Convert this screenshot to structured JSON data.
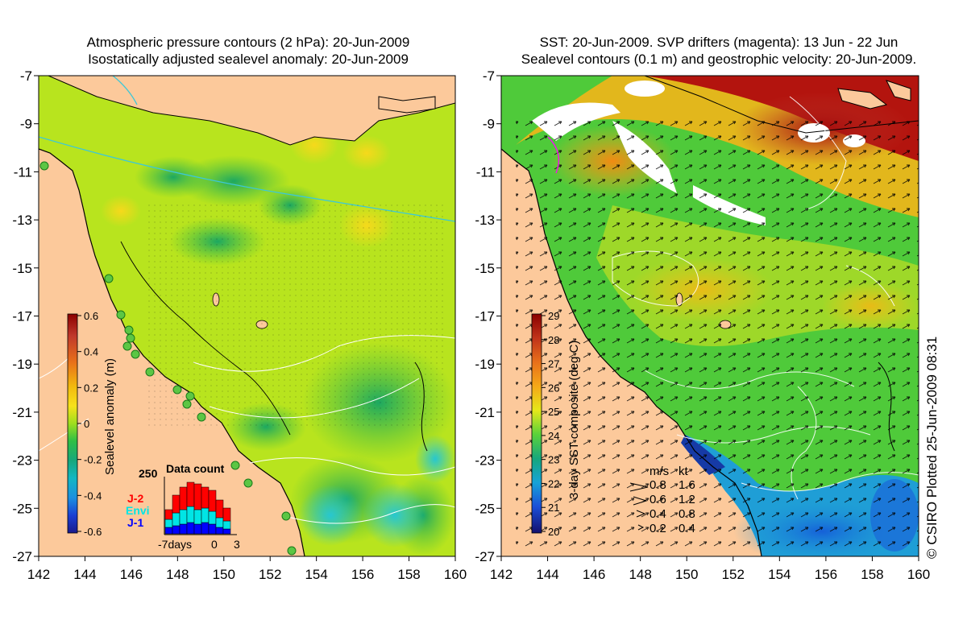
{
  "left_panel": {
    "title_line1": "Atmospheric pressure contours (2 hPa): 20-Jun-2009",
    "title_line2": "Isostatically adjusted sealevel anomaly: 20-Jun-2009",
    "colorbar": {
      "label": "Sealevel anomaly (m)",
      "ticks": [
        "0.6",
        "0.4",
        "0.2",
        "0",
        "-0.2",
        "-0.4",
        "-0.6"
      ],
      "colors": [
        "#8b0000",
        "#c0392b",
        "#e8701a",
        "#f2b90e",
        "#f7e21a",
        "#b6e51d",
        "#5ad23a",
        "#1fb84a",
        "#16a77c",
        "#13b7c3",
        "#1b8fe0",
        "#1b3fd3",
        "#1a1a8c"
      ]
    },
    "data_count": {
      "title": "Data count",
      "ymax_label": "250",
      "x_labels": [
        "-7days",
        "0",
        "3"
      ],
      "legend": [
        {
          "name": "J-2",
          "color": "#ff0000"
        },
        {
          "name": "Envi",
          "color": "#00e5e5"
        },
        {
          "name": "J-1",
          "color": "#0000ff"
        }
      ]
    }
  },
  "right_panel": {
    "title_line1": "SST: 20-Jun-2009. SVP drifters (magenta): 13 Jun - 22 Jun",
    "title_line2": "Sealevel contours (0.1 m) and geostrophic velocity: 20-Jun-2009.",
    "colorbar": {
      "label": "3-day SST composite (deg C)",
      "ticks": [
        "29",
        "28",
        "27",
        "26",
        "25",
        "24",
        "23",
        "22",
        "21",
        "20"
      ]
    },
    "velocity_legend": {
      "head_ms": "m/s",
      "head_kt": "kt",
      "rows": [
        {
          "ms": "0.8",
          "kt": "1.6"
        },
        {
          "ms": "0.6",
          "kt": "1.2"
        },
        {
          "ms": "0.4",
          "kt": "0.8"
        },
        {
          "ms": "0.2",
          "kt": "0.4"
        }
      ]
    },
    "credit": "© CSIRO Plotted 25-Jun-2009 08:31"
  },
  "axes": {
    "x_ticks": [
      "142",
      "144",
      "146",
      "148",
      "150",
      "152",
      "154",
      "156",
      "158",
      "160"
    ],
    "y_ticks": [
      "-7",
      "-9",
      "-11",
      "-13",
      "-15",
      "-17",
      "-19",
      "-21",
      "-23",
      "-25",
      "-27"
    ]
  },
  "colors": {
    "land": "#fcc99b",
    "reef_outline": "#000000",
    "contour": "#ffffff",
    "pressure_line": "#3cc8d8"
  }
}
